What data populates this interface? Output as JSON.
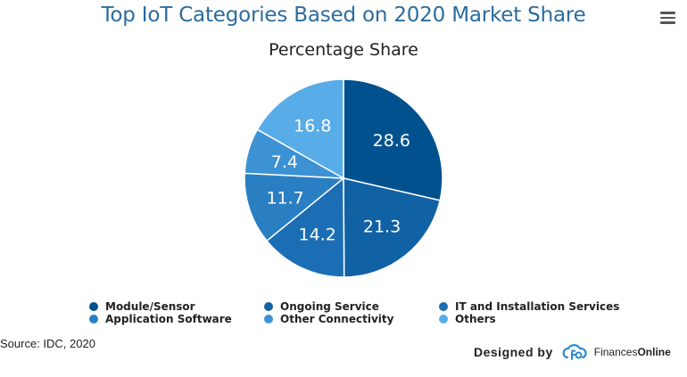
{
  "header": {
    "title": "Top IoT Categories Based on 2020 Market Share",
    "menu_icon": "hamburger-menu-icon"
  },
  "chart_data": {
    "type": "pie",
    "subtitle": "Percentage Share",
    "slices": [
      {
        "name": "Module/Sensor",
        "value": 28.6,
        "color": "#01518f"
      },
      {
        "name": "Ongoing Service",
        "value": 21.3,
        "color": "#1161a5"
      },
      {
        "name": "IT and Installation Services",
        "value": 14.2,
        "color": "#1b6eb4"
      },
      {
        "name": "Application Software",
        "value": 11.7,
        "color": "#2a7fc3"
      },
      {
        "name": "Other Connectivity",
        "value": 7.4,
        "color": "#3d92d4"
      },
      {
        "name": "Others",
        "value": 16.8,
        "color": "#58ace8"
      }
    ],
    "legend_position": "bottom"
  },
  "footer": {
    "source": "Source: IDC, 2020",
    "designed_by": "Designed by",
    "brand_regular": "Finances",
    "brand_bold": "Online"
  }
}
